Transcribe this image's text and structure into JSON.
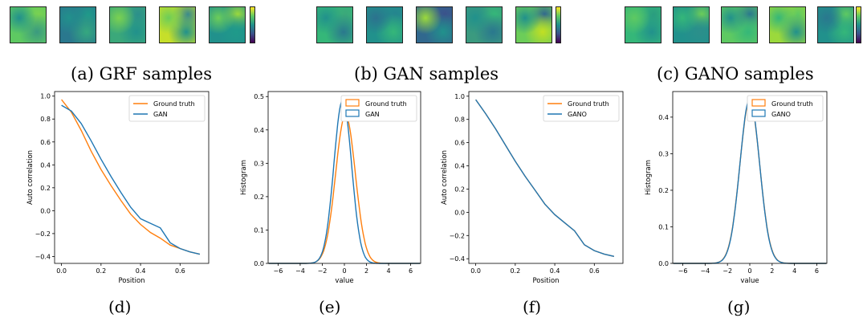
{
  "captions": {
    "a": "(a) GRF samples",
    "b": "(b) GAN samples",
    "c": "(c) GANO samples",
    "d": "(d)",
    "e": "(e)",
    "f": "(f)",
    "g": "(g)"
  },
  "sample_strips": [
    {
      "name": "grf",
      "palettes": [
        [
          "#5ec962",
          "#21918c",
          "#3b9a7f",
          "#7ad151"
        ],
        [
          "#2a788e",
          "#21918c",
          "#35a87f",
          "#1f9a8a"
        ],
        [
          "#3ba87a",
          "#7ad151",
          "#21918c",
          "#2c8f8b"
        ],
        [
          "#c6df2a",
          "#6ccd59",
          "#21918c",
          "#3b8a8c"
        ],
        [
          "#21918c",
          "#6ccd59",
          "#1f9a8a",
          "#9bd93c"
        ]
      ]
    },
    {
      "name": "gan",
      "palettes": [
        [
          "#35b779",
          "#21918c",
          "#2a788e",
          "#3ba87a"
        ],
        [
          "#21918c",
          "#2c728e",
          "#35b779",
          "#25858e"
        ],
        [
          "#31688e",
          "#9bd93c",
          "#21918c",
          "#3b528b"
        ],
        [
          "#3b9a7f",
          "#21918c",
          "#2a788e",
          "#35b779"
        ],
        [
          "#6ccd59",
          "#21918c",
          "#c2df23",
          "#31688e"
        ]
      ]
    },
    {
      "name": "gano",
      "palettes": [
        [
          "#35b779",
          "#5ec962",
          "#21918c",
          "#2a9d7f"
        ],
        [
          "#21918c",
          "#35b779",
          "#2c8f8b",
          "#6ccd59"
        ],
        [
          "#5ec962",
          "#21918c",
          "#35b779",
          "#2a788e"
        ],
        [
          "#9bd93c",
          "#35b779",
          "#21918c",
          "#5ec962"
        ],
        [
          "#21918c",
          "#2a788e",
          "#35b779",
          "#5ec962"
        ]
      ]
    }
  ],
  "colors": {
    "ground_truth": "#ff7f0e",
    "model": "#1f77b4"
  },
  "chart_data": [
    {
      "type": "line",
      "xlabel": "Position",
      "ylabel": "Auto correlation",
      "xlim": [
        -0.035,
        0.745
      ],
      "ylim": [
        -0.46,
        1.04
      ],
      "xticks": [
        0.0,
        0.2,
        0.4,
        0.6
      ],
      "yticks": [
        -0.4,
        -0.2,
        0.0,
        0.2,
        0.4,
        0.6,
        0.8,
        1.0
      ],
      "xtick_labels": [
        "0.0",
        "0.2",
        "0.4",
        "0.6"
      ],
      "ytick_labels": [
        "−0.4",
        "−0.2",
        "0.0",
        "0.2",
        "0.4",
        "0.6",
        "0.8",
        "1.0"
      ],
      "legend_position": "top-right",
      "series": [
        {
          "name": "Ground truth",
          "x": [
            0.0,
            0.05,
            0.1,
            0.15,
            0.2,
            0.25,
            0.3,
            0.35,
            0.4,
            0.45,
            0.5,
            0.55,
            0.6,
            0.65,
            0.7
          ],
          "y": [
            0.97,
            0.86,
            0.7,
            0.52,
            0.36,
            0.22,
            0.09,
            -0.03,
            -0.12,
            -0.19,
            -0.24,
            -0.3,
            -0.33,
            -0.36,
            -0.38
          ]
        },
        {
          "name": "GAN",
          "x": [
            0.0,
            0.05,
            0.1,
            0.15,
            0.2,
            0.25,
            0.3,
            0.35,
            0.4,
            0.45,
            0.5,
            0.55,
            0.6,
            0.65,
            0.7
          ],
          "y": [
            0.92,
            0.87,
            0.76,
            0.61,
            0.45,
            0.3,
            0.16,
            0.03,
            -0.07,
            -0.11,
            -0.15,
            -0.28,
            -0.33,
            -0.36,
            -0.38
          ]
        }
      ]
    },
    {
      "type": "line",
      "xlabel": "value",
      "ylabel": "Histogram",
      "xlim": [
        -6.9,
        6.9
      ],
      "ylim": [
        0.0,
        0.515
      ],
      "xticks": [
        -6,
        -4,
        -2,
        0,
        2,
        4,
        6
      ],
      "yticks": [
        0.0,
        0.1,
        0.2,
        0.3,
        0.4,
        0.5
      ],
      "xtick_labels": [
        "−6",
        "−4",
        "−2",
        "0",
        "2",
        "4",
        "6"
      ],
      "ytick_labels": [
        "0.0",
        "0.1",
        "0.2",
        "0.3",
        "0.4",
        "0.5"
      ],
      "legend_position": "top-right",
      "series": [
        {
          "name": "Ground truth",
          "mean": 0.1,
          "std": 0.89,
          "peak": 0.445
        },
        {
          "name": "GAN",
          "mean": -0.15,
          "std": 0.8,
          "peak": 0.49
        }
      ]
    },
    {
      "type": "line",
      "xlabel": "Position",
      "ylabel": "Auto correlation",
      "xlim": [
        -0.035,
        0.745
      ],
      "ylim": [
        -0.44,
        1.04
      ],
      "xticks": [
        0.0,
        0.2,
        0.4,
        0.6
      ],
      "yticks": [
        -0.4,
        -0.2,
        0.0,
        0.2,
        0.4,
        0.6,
        0.8,
        1.0
      ],
      "xtick_labels": [
        "0.0",
        "0.2",
        "0.4",
        "0.6"
      ],
      "ytick_labels": [
        "−0.4",
        "−0.2",
        "0.0",
        "0.2",
        "0.4",
        "0.6",
        "0.8",
        "1.0"
      ],
      "legend_position": "top-right",
      "series": [
        {
          "name": "Ground truth",
          "x": [
            0.0,
            0.05,
            0.1,
            0.15,
            0.2,
            0.25,
            0.3,
            0.35,
            0.4,
            0.45,
            0.5,
            0.55,
            0.6,
            0.65,
            0.7
          ],
          "y": [
            0.97,
            0.85,
            0.72,
            0.58,
            0.44,
            0.31,
            0.19,
            0.07,
            -0.02,
            -0.09,
            -0.16,
            -0.28,
            -0.33,
            -0.36,
            -0.38
          ]
        },
        {
          "name": "GANO",
          "x": [
            0.0,
            0.05,
            0.1,
            0.15,
            0.2,
            0.25,
            0.3,
            0.35,
            0.4,
            0.45,
            0.5,
            0.55,
            0.6,
            0.65,
            0.7
          ],
          "y": [
            0.97,
            0.85,
            0.72,
            0.58,
            0.44,
            0.31,
            0.19,
            0.07,
            -0.02,
            -0.09,
            -0.16,
            -0.28,
            -0.33,
            -0.36,
            -0.38
          ]
        }
      ]
    },
    {
      "type": "line",
      "xlabel": "value",
      "ylabel": "Histogram",
      "xlim": [
        -6.9,
        6.9
      ],
      "ylim": [
        0.0,
        0.47
      ],
      "xticks": [
        -6,
        -4,
        -2,
        0,
        2,
        4,
        6
      ],
      "yticks": [
        0.0,
        0.1,
        0.2,
        0.3,
        0.4
      ],
      "xtick_labels": [
        "−6",
        "−4",
        "−2",
        "0",
        "2",
        "4",
        "6"
      ],
      "ytick_labels": [
        "0.0",
        "0.1",
        "0.2",
        "0.3",
        "0.4"
      ],
      "legend_position": "top-right",
      "series": [
        {
          "name": "Ground truth",
          "mean": 0.0,
          "std": 0.89,
          "peak": 0.445
        },
        {
          "name": "GANO",
          "mean": 0.0,
          "std": 0.88,
          "peak": 0.45
        }
      ]
    }
  ]
}
